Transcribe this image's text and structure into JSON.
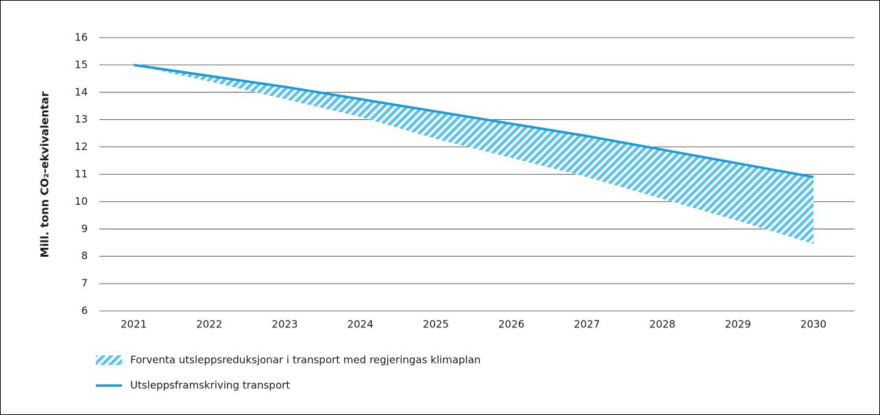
{
  "chart_data": {
    "type": "line",
    "y_axis_label": "Mill. tonn CO₂-ekvivalentar",
    "categories": [
      "2021",
      "2022",
      "2023",
      "2024",
      "2025",
      "2026",
      "2027",
      "2028",
      "2029",
      "2030"
    ],
    "series": [
      {
        "name": "Forventa utsleppsreduksjonar i transport med regjeringas klimaplan",
        "color": "#5cc3ea",
        "kind": "band",
        "values": [
          15,
          14.4,
          13.75,
          13.1,
          12.3,
          11.6,
          10.9,
          10.1,
          9.3,
          8.45
        ]
      },
      {
        "name": "Utsleppsframskriving transport",
        "color": "#1a9ad6",
        "kind": "line",
        "values": [
          15,
          14.6,
          14.2,
          13.75,
          13.3,
          12.85,
          12.4,
          11.9,
          11.4,
          10.9
        ]
      }
    ],
    "ylim": [
      6,
      16
    ],
    "yticks": [
      6,
      7,
      8,
      9,
      10,
      11,
      12,
      13,
      14,
      15,
      16
    ],
    "grid": true
  }
}
